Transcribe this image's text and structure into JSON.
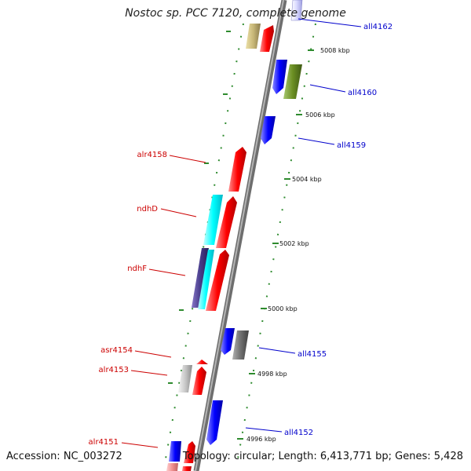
{
  "title": "Nostoc sp. PCC 7120, complete genome",
  "footer": {
    "accession": "Accession: NC_003272",
    "summary": "Topology: circular; Length: 6,413,771 bp; Genes: 5,428"
  },
  "colors": {
    "backbone": "#8c8c8c",
    "tick": "#2e8b2e",
    "gene_red": "#ff0000",
    "gene_blue": "#0000ff",
    "gene_cyan": "#00ffff",
    "gene_olive": "#6b8e23",
    "gene_khaki": "#c8b878",
    "gene_gray": "#707070",
    "gene_silver": "#c8c8c8",
    "gene_indigo": "#483d8b",
    "label_left": "#cc0000",
    "label_right": "#0000cc"
  },
  "coordinate_ticks": [
    {
      "label": "5008 kbp"
    },
    {
      "label": "5006 kbp"
    },
    {
      "label": "5004 kbp"
    },
    {
      "label": "5002 kbp"
    },
    {
      "label": "5000 kbp"
    },
    {
      "label": "4998 kbp"
    },
    {
      "label": "4996 kbp"
    }
  ],
  "gene_labels": {
    "left": [
      "alr4158",
      "ndhD",
      "ndhF",
      "asr4154",
      "alr4153",
      "alr4151"
    ],
    "right": [
      "all4162",
      "all4160",
      "all4159",
      "all4155",
      "all4152"
    ]
  }
}
